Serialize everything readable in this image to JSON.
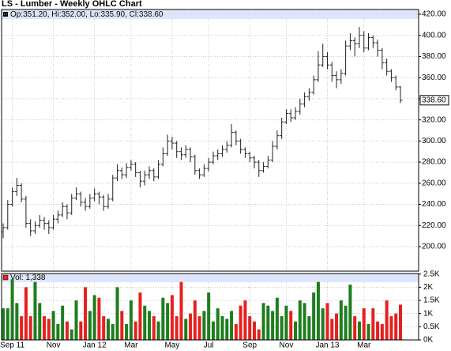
{
  "chart_data": {
    "type": "ohlc",
    "title": "LS - Lumber - Weekly OHLC Chart",
    "legend_label": "Op:351.20, Hi:352.00, Lo:335.90, Cl:338.60",
    "color": "#222222",
    "grid": true,
    "categories": [
      null,
      null,
      "Sep 11",
      null,
      null,
      null,
      null,
      null,
      null,
      null,
      null,
      "Nov",
      null,
      null,
      null,
      null,
      null,
      null,
      null,
      null,
      "Jan 12",
      null,
      null,
      null,
      null,
      null,
      null,
      null,
      "Mar",
      null,
      null,
      null,
      null,
      null,
      null,
      null,
      null,
      "May",
      null,
      null,
      null,
      null,
      null,
      null,
      null,
      "Jul",
      null,
      null,
      null,
      null,
      null,
      null,
      null,
      null,
      "Sep",
      null,
      null,
      null,
      null,
      null,
      null,
      null,
      "Nov",
      null,
      null,
      null,
      null,
      null,
      null,
      null,
      null,
      "Jan 13",
      null,
      null,
      null,
      null,
      null,
      null,
      null,
      "Mar",
      null,
      null,
      null,
      null,
      null,
      null,
      null,
      null
    ],
    "open": [
      214,
      218,
      240,
      252,
      258,
      245,
      222,
      215,
      220,
      225,
      222,
      218,
      226,
      230,
      238,
      232,
      246,
      250,
      242,
      238,
      246,
      250,
      247,
      238,
      245,
      265,
      272,
      268,
      275,
      278,
      270,
      262,
      268,
      272,
      266,
      278,
      288,
      300,
      298,
      290,
      287,
      292,
      285,
      272,
      268,
      274,
      280,
      286,
      288,
      292,
      296,
      308,
      300,
      292,
      288,
      284,
      280,
      272,
      276,
      282,
      295,
      305,
      318,
      326,
      322,
      328,
      335,
      342,
      346,
      358,
      372,
      380,
      372,
      362,
      358,
      364,
      390,
      395,
      392,
      400,
      388,
      398,
      393,
      386,
      374,
      366,
      360,
      351.2
    ],
    "high": [
      222,
      244,
      256,
      265,
      260,
      248,
      226,
      224,
      230,
      228,
      225,
      230,
      234,
      242,
      240,
      250,
      256,
      252,
      246,
      250,
      255,
      252,
      249,
      250,
      268,
      278,
      275,
      279,
      282,
      280,
      272,
      272,
      276,
      274,
      282,
      294,
      306,
      304,
      300,
      294,
      296,
      294,
      287,
      274,
      278,
      284,
      290,
      292,
      296,
      300,
      316,
      310,
      302,
      294,
      290,
      286,
      282,
      280,
      286,
      300,
      310,
      322,
      330,
      330,
      332,
      340,
      346,
      350,
      362,
      385,
      392,
      384,
      375,
      366,
      368,
      395,
      402,
      398,
      408,
      404,
      402,
      400,
      396,
      388,
      378,
      368,
      362,
      352
    ],
    "low": [
      208,
      216,
      238,
      248,
      242,
      218,
      210,
      212,
      218,
      216,
      212,
      216,
      222,
      228,
      226,
      230,
      244,
      238,
      234,
      236,
      243,
      240,
      234,
      236,
      243,
      262,
      264,
      265,
      272,
      266,
      256,
      258,
      264,
      262,
      264,
      276,
      286,
      292,
      284,
      282,
      284,
      280,
      268,
      264,
      266,
      271,
      278,
      282,
      285,
      289,
      294,
      296,
      288,
      284,
      280,
      274,
      266,
      270,
      274,
      280,
      292,
      302,
      316,
      318,
      320,
      325,
      332,
      338,
      344,
      356,
      370,
      368,
      356,
      350,
      354,
      362,
      386,
      380,
      388,
      384,
      386,
      388,
      380,
      368,
      362,
      356,
      348,
      335.9
    ],
    "close": [
      218,
      240,
      252,
      258,
      245,
      222,
      215,
      220,
      225,
      222,
      218,
      226,
      230,
      238,
      232,
      246,
      250,
      242,
      238,
      246,
      250,
      247,
      238,
      245,
      265,
      272,
      268,
      275,
      278,
      270,
      262,
      268,
      272,
      266,
      278,
      288,
      300,
      298,
      290,
      287,
      292,
      285,
      272,
      268,
      274,
      280,
      286,
      288,
      292,
      296,
      308,
      300,
      292,
      288,
      284,
      280,
      272,
      276,
      282,
      295,
      305,
      318,
      326,
      322,
      328,
      335,
      342,
      346,
      358,
      372,
      380,
      372,
      362,
      358,
      364,
      390,
      395,
      392,
      400,
      388,
      398,
      393,
      386,
      374,
      366,
      360,
      351.2,
      338.6
    ],
    "ylim": [
      176.8,
      424.5
    ],
    "yticks": [
      {
        "value": 200,
        "label": "200.00"
      },
      {
        "value": 220,
        "label": "220.00"
      },
      {
        "value": 240,
        "label": "240.00"
      },
      {
        "value": 260,
        "label": "260.00"
      },
      {
        "value": 280,
        "label": "280.00"
      },
      {
        "value": 300,
        "label": "300.00"
      },
      {
        "value": 320,
        "label": "320.00"
      },
      {
        "value": 340,
        "label": "340.00"
      },
      {
        "value": 360,
        "label": "360.00"
      },
      {
        "value": 380,
        "label": "380.00"
      },
      {
        "value": 400,
        "label": "400.00"
      },
      {
        "value": 420,
        "label": "420.00"
      }
    ],
    "last_price": {
      "value": 338.6,
      "label": "338.60"
    },
    "volume": {
      "label": "Vol: 1,338",
      "up_color": "#1e7d1e",
      "down_color": "#e62020",
      "values": [
        1200,
        1200,
        2300,
        1400,
        900,
        2000,
        900,
        2200,
        1400,
        900,
        800,
        1100,
        600,
        1300,
        700,
        400,
        1500,
        700,
        2000,
        1100,
        1700,
        1600,
        900,
        800,
        600,
        2000,
        1100,
        600,
        1500,
        700,
        1800,
        1300,
        1100,
        900,
        700,
        1600,
        1400,
        1700,
        900,
        2200,
        800,
        1000,
        1500,
        900,
        1100,
        1800,
        700,
        1200,
        900,
        800,
        1100,
        600,
        1300,
        1500,
        900,
        700,
        400,
        1400,
        1300,
        1100,
        1600,
        900,
        1300,
        1100,
        700,
        1500,
        1400,
        900,
        1800,
        2200,
        1200,
        1400,
        800,
        1000,
        1500,
        1300,
        2100,
        900,
        700,
        1200,
        600,
        1200,
        700,
        600,
        1500,
        900,
        1000,
        1338
      ],
      "ylim": [
        0,
        2520
      ],
      "yticks": [
        {
          "value": 0,
          "label": "0K"
        },
        {
          "value": 500,
          "label": "0.5K"
        },
        {
          "value": 1000,
          "label": "1K"
        },
        {
          "value": 1500,
          "label": "1.5K"
        },
        {
          "value": 2000,
          "label": "2K"
        },
        {
          "value": 2500,
          "label": "2.5K"
        }
      ]
    }
  }
}
